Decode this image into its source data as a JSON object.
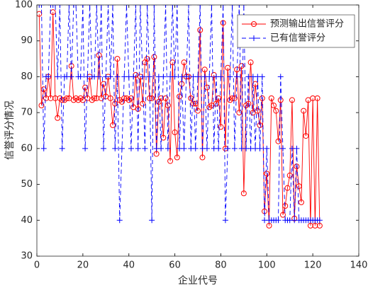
{
  "chart_data": {
    "type": "line",
    "x_label": "企业代号",
    "y_label": "信誉评分情况",
    "xlim": [
      0,
      140
    ],
    "xticks": [
      0,
      20,
      40,
      60,
      80,
      100,
      120,
      140
    ],
    "ylim": [
      30,
      100
    ],
    "yticks": [
      30,
      40,
      50,
      60,
      70,
      80,
      90,
      100
    ],
    "legend": "upper right",
    "x": [
      1,
      2,
      3,
      4,
      5,
      6,
      7,
      8,
      9,
      10,
      11,
      12,
      13,
      14,
      15,
      16,
      17,
      18,
      19,
      20,
      21,
      22,
      23,
      24,
      25,
      26,
      27,
      28,
      29,
      30,
      31,
      32,
      33,
      34,
      35,
      36,
      37,
      38,
      39,
      40,
      41,
      42,
      43,
      44,
      45,
      46,
      47,
      48,
      49,
      50,
      51,
      52,
      53,
      54,
      55,
      56,
      57,
      58,
      59,
      60,
      61,
      62,
      63,
      64,
      65,
      66,
      67,
      68,
      69,
      70,
      71,
      72,
      73,
      74,
      75,
      76,
      77,
      78,
      79,
      80,
      81,
      82,
      83,
      84,
      85,
      86,
      87,
      88,
      89,
      90,
      91,
      92,
      93,
      94,
      95,
      96,
      97,
      98,
      99,
      100,
      101,
      102,
      103,
      104,
      105,
      106,
      107,
      108,
      109,
      110,
      111,
      112,
      113,
      114,
      115,
      116,
      117,
      118,
      119,
      120,
      121,
      122,
      123
    ],
    "series": [
      {
        "name": "预测输出信誉评分",
        "color": "#ff0000",
        "line_style": "solid",
        "marker": "o",
        "values": [
          97.5,
          72,
          76.5,
          74,
          80,
          74,
          98,
          74,
          68.5,
          74,
          73.5,
          73.5,
          74,
          74,
          83,
          73.5,
          74,
          73.5,
          74,
          73.5,
          77,
          74,
          80,
          73.5,
          74,
          74,
          86,
          74,
          78,
          74.5,
          80,
          74,
          66.5,
          72.5,
          85,
          73.5,
          73,
          74,
          74,
          73.5,
          74,
          71.5,
          80.5,
          71,
          80,
          72.5,
          84,
          85,
          74,
          74,
          85.5,
          58.5,
          73,
          74,
          63,
          74,
          72,
          56.5,
          84,
          64.5,
          57.5,
          74.5,
          78,
          84,
          80,
          80,
          74,
          72.5,
          72.5,
          70.5,
          93,
          57.5,
          82,
          77,
          71.5,
          72,
          80.5,
          72.5,
          74,
          66,
          95,
          60,
          82.5,
          73.5,
          74,
          74,
          82,
          70,
          83,
          47.5,
          72,
          72.5,
          84,
          70,
          78,
          70.5,
          66.5,
          74,
          42.5,
          53,
          38.5,
          74,
          72,
          70.5,
          62,
          73.5,
          41.5,
          44,
          49,
          52.5,
          73.5,
          40.5,
          55,
          49.5,
          45,
          70.5,
          63.5,
          73.5,
          38.5,
          74,
          38.5,
          74,
          38.5
        ]
      },
      {
        "name": "已有信誉评分",
        "color": "#0000ff",
        "line_style": "dashed",
        "marker": "+",
        "values": [
          100,
          100,
          60,
          80,
          80,
          100,
          100,
          100,
          80,
          100,
          60,
          80,
          80,
          100,
          80,
          100,
          100,
          80,
          80,
          100,
          60,
          80,
          100,
          80,
          80,
          100,
          80,
          100,
          60,
          80,
          100,
          80,
          100,
          60,
          80,
          40,
          60,
          80,
          100,
          80,
          60,
          80,
          100,
          60,
          100,
          80,
          60,
          100,
          80,
          40,
          100,
          60,
          80,
          60,
          80,
          100,
          60,
          80,
          100,
          80,
          100,
          60,
          80,
          60,
          80,
          100,
          60,
          80,
          60,
          80,
          100,
          60,
          80,
          60,
          80,
          100,
          60,
          80,
          60,
          80,
          100,
          40,
          60,
          80,
          100,
          60,
          80,
          100,
          60,
          100,
          60,
          80,
          60,
          80,
          60,
          80,
          60,
          80,
          40,
          60,
          40,
          40,
          40,
          40,
          40,
          80,
          60,
          40,
          40,
          40,
          60,
          40,
          60,
          40,
          40,
          40,
          40,
          40,
          40,
          40,
          40,
          40,
          40
        ]
      }
    ]
  }
}
